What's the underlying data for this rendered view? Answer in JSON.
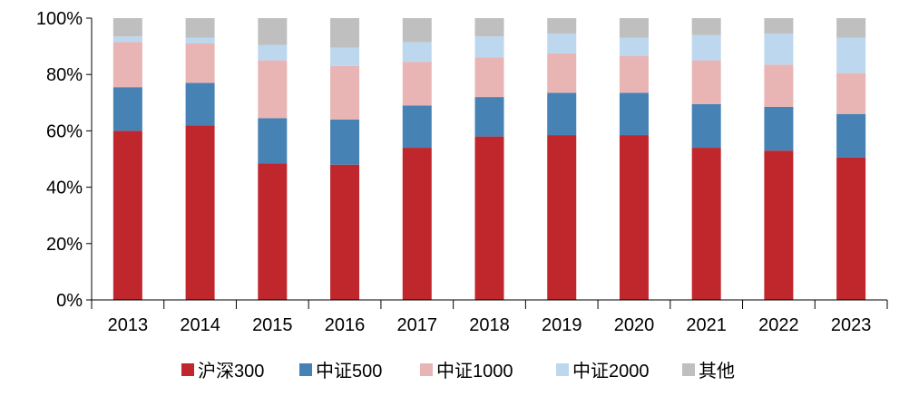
{
  "chart_data": {
    "type": "bar",
    "stacked": true,
    "categories": [
      "2013",
      "2014",
      "2015",
      "2016",
      "2017",
      "2018",
      "2019",
      "2020",
      "2021",
      "2022",
      "2023"
    ],
    "series": [
      {
        "name": "沪深300",
        "color": "#C0272D",
        "values": [
          60,
          62,
          48.5,
          48,
          54,
          58,
          58.5,
          58.5,
          54,
          53,
          50.5
        ]
      },
      {
        "name": "中证500",
        "color": "#4682B4",
        "values": [
          15.5,
          15,
          16,
          16,
          15,
          14,
          15,
          15,
          15.5,
          15.5,
          15.5
        ]
      },
      {
        "name": "中证1000",
        "color": "#E8B4B4",
        "values": [
          16,
          14,
          20.5,
          19,
          15.5,
          14,
          14,
          13,
          15.5,
          15,
          14.5
        ]
      },
      {
        "name": "中证2000",
        "color": "#BDD7EE",
        "values": [
          2,
          2,
          5.5,
          6.5,
          7,
          7.5,
          7,
          6.5,
          9,
          11,
          12.5
        ]
      },
      {
        "name": "其他",
        "color": "#BFBFBF",
        "values": [
          6.5,
          7,
          9.5,
          10.5,
          8.5,
          6.5,
          5.5,
          7,
          6,
          5.5,
          7
        ]
      }
    ],
    "yticks": [
      "0%",
      "20%",
      "40%",
      "60%",
      "80%",
      "100%"
    ],
    "ylim": [
      0,
      100
    ],
    "grid": false,
    "legend": "bottom-center",
    "title": "",
    "xlabel": "",
    "ylabel": ""
  }
}
